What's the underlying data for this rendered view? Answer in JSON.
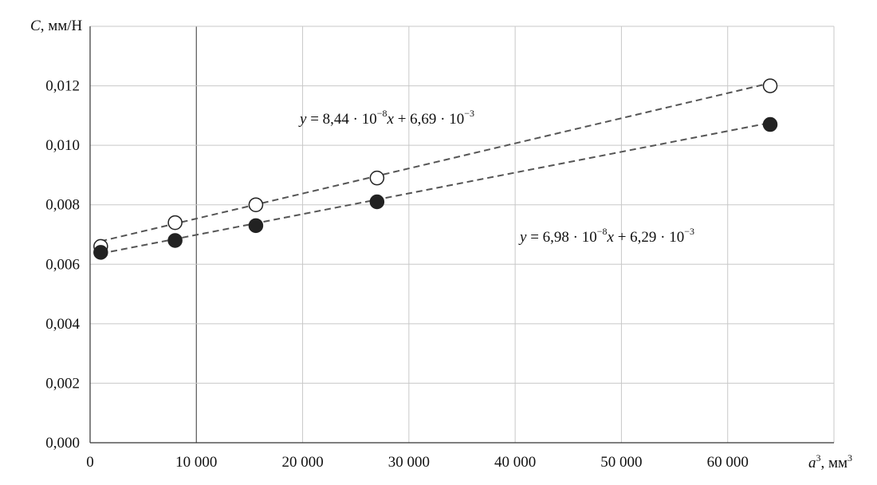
{
  "chart_data": {
    "type": "scatter",
    "xlabel": {
      "var": "a",
      "sup": "3",
      "rest": ", мм",
      "unit_sup": "3"
    },
    "ylabel": {
      "var": "C",
      "rest": ", мм/Н"
    },
    "xlim": [
      0,
      70000
    ],
    "ylim": [
      0,
      0.014
    ],
    "x_ticks": [
      0,
      10000,
      20000,
      30000,
      40000,
      50000,
      60000
    ],
    "x_tick_labels": [
      "0",
      "10 000",
      "20 000",
      "30 000",
      "40 000",
      "50 000",
      "60 000"
    ],
    "y_ticks": [
      0,
      0.002,
      0.004,
      0.006,
      0.008,
      0.01,
      0.012
    ],
    "y_tick_labels": [
      "0,000",
      "0,002",
      "0,004",
      "0,006",
      "0,008",
      "0,010",
      "0,012"
    ],
    "grid": true,
    "series": [
      {
        "marker": "open-circle",
        "x": [
          1000,
          8000,
          15600,
          27000,
          64000
        ],
        "y": [
          0.0066,
          0.0074,
          0.008,
          0.0089,
          0.012
        ],
        "trendline": {
          "slope": 8.44e-08,
          "intercept": 0.00669
        },
        "equation": {
          "lhs": "y",
          "mid": " = 8,44 · 10",
          "exp1": "−8",
          "x": "x",
          "tail": " + 6,69 · 10",
          "exp2": "−3"
        }
      },
      {
        "marker": "filled-circle",
        "x": [
          1000,
          8000,
          15600,
          27000,
          64000
        ],
        "y": [
          0.0064,
          0.0068,
          0.0073,
          0.0081,
          0.0107
        ],
        "trendline": {
          "slope": 6.98e-08,
          "intercept": 0.00629
        },
        "equation": {
          "lhs": "y",
          "mid": " = 6,98 · 10",
          "exp1": "−8",
          "x": "x",
          "tail": " + 6,29 · 10",
          "exp2": "−3"
        }
      }
    ]
  }
}
